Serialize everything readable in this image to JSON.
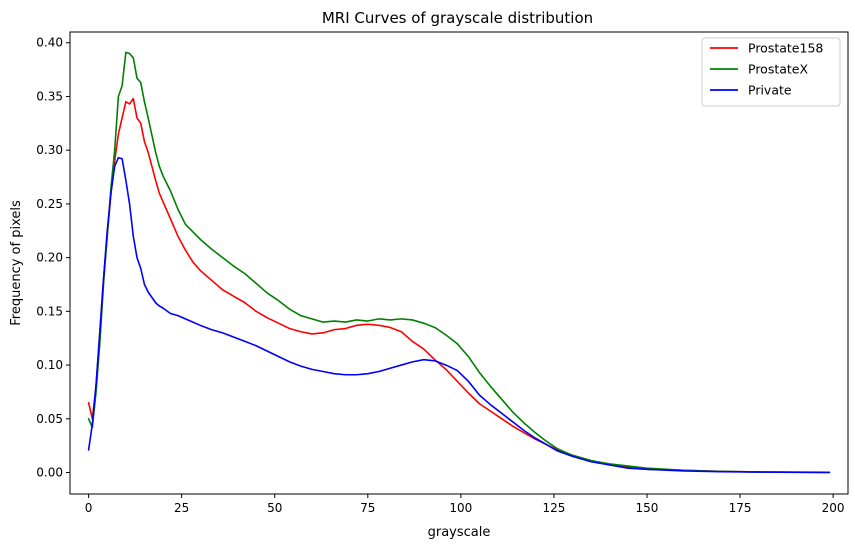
{
  "chart_data": {
    "type": "line",
    "title": "MRI Curves of grayscale distribution",
    "xlabel": "grayscale",
    "ylabel": "Frequency of pixels",
    "xlim": [
      -5,
      204
    ],
    "ylim": [
      -0.02,
      0.41
    ],
    "xticks": [
      0,
      25,
      50,
      75,
      100,
      125,
      150,
      175,
      200
    ],
    "xtick_labels": [
      "0",
      "25",
      "50",
      "75",
      "100",
      "125",
      "150",
      "175",
      "200"
    ],
    "yticks": [
      0.0,
      0.05,
      0.1,
      0.15,
      0.2,
      0.25,
      0.3,
      0.35,
      0.4
    ],
    "ytick_labels": [
      "0.00",
      "0.05",
      "0.10",
      "0.15",
      "0.20",
      "0.25",
      "0.30",
      "0.35",
      "0.40"
    ],
    "grid": false,
    "legend_position": "top-right",
    "series": [
      {
        "name": "Prostate158",
        "color": "#ff0000",
        "points": [
          [
            0,
            0.065
          ],
          [
            1,
            0.05
          ],
          [
            2,
            0.08
          ],
          [
            3,
            0.13
          ],
          [
            4,
            0.18
          ],
          [
            5,
            0.22
          ],
          [
            6,
            0.26
          ],
          [
            7,
            0.29
          ],
          [
            8,
            0.315
          ],
          [
            9,
            0.33
          ],
          [
            10,
            0.345
          ],
          [
            11,
            0.343
          ],
          [
            12,
            0.348
          ],
          [
            13,
            0.33
          ],
          [
            14,
            0.325
          ],
          [
            15,
            0.308
          ],
          [
            16,
            0.298
          ],
          [
            17,
            0.285
          ],
          [
            18,
            0.272
          ],
          [
            19,
            0.26
          ],
          [
            20,
            0.252
          ],
          [
            22,
            0.236
          ],
          [
            24,
            0.22
          ],
          [
            26,
            0.207
          ],
          [
            28,
            0.196
          ],
          [
            30,
            0.188
          ],
          [
            33,
            0.179
          ],
          [
            36,
            0.17
          ],
          [
            39,
            0.164
          ],
          [
            42,
            0.158
          ],
          [
            45,
            0.15
          ],
          [
            48,
            0.144
          ],
          [
            51,
            0.139
          ],
          [
            54,
            0.134
          ],
          [
            57,
            0.131
          ],
          [
            60,
            0.129
          ],
          [
            63,
            0.13
          ],
          [
            66,
            0.133
          ],
          [
            69,
            0.134
          ],
          [
            72,
            0.137
          ],
          [
            75,
            0.138
          ],
          [
            78,
            0.137
          ],
          [
            81,
            0.135
          ],
          [
            84,
            0.131
          ],
          [
            87,
            0.122
          ],
          [
            90,
            0.115
          ],
          [
            93,
            0.105
          ],
          [
            96,
            0.096
          ],
          [
            99,
            0.085
          ],
          [
            102,
            0.074
          ],
          [
            105,
            0.064
          ],
          [
            108,
            0.057
          ],
          [
            111,
            0.05
          ],
          [
            114,
            0.043
          ],
          [
            117,
            0.037
          ],
          [
            120,
            0.031
          ],
          [
            123,
            0.026
          ],
          [
            126,
            0.021
          ],
          [
            130,
            0.016
          ],
          [
            135,
            0.011
          ],
          [
            140,
            0.007
          ],
          [
            145,
            0.005
          ],
          [
            150,
            0.003
          ],
          [
            160,
            0.002
          ],
          [
            170,
            0.001
          ],
          [
            180,
            0.0005
          ],
          [
            190,
            0.0003
          ],
          [
            199,
            0.0002
          ]
        ]
      },
      {
        "name": "ProstateX",
        "color": "#008000",
        "points": [
          [
            0,
            0.05
          ],
          [
            1,
            0.042
          ],
          [
            2,
            0.075
          ],
          [
            3,
            0.12
          ],
          [
            4,
            0.175
          ],
          [
            5,
            0.22
          ],
          [
            6,
            0.265
          ],
          [
            7,
            0.3
          ],
          [
            8,
            0.35
          ],
          [
            9,
            0.36
          ],
          [
            10,
            0.391
          ],
          [
            11,
            0.39
          ],
          [
            12,
            0.386
          ],
          [
            13,
            0.367
          ],
          [
            14,
            0.363
          ],
          [
            15,
            0.345
          ],
          [
            16,
            0.33
          ],
          [
            17,
            0.314
          ],
          [
            18,
            0.298
          ],
          [
            19,
            0.285
          ],
          [
            20,
            0.276
          ],
          [
            22,
            0.262
          ],
          [
            24,
            0.245
          ],
          [
            26,
            0.231
          ],
          [
            28,
            0.224
          ],
          [
            30,
            0.217
          ],
          [
            33,
            0.208
          ],
          [
            36,
            0.2
          ],
          [
            39,
            0.192
          ],
          [
            42,
            0.185
          ],
          [
            45,
            0.176
          ],
          [
            48,
            0.167
          ],
          [
            51,
            0.16
          ],
          [
            54,
            0.152
          ],
          [
            57,
            0.146
          ],
          [
            60,
            0.143
          ],
          [
            63,
            0.14
          ],
          [
            66,
            0.141
          ],
          [
            69,
            0.14
          ],
          [
            72,
            0.142
          ],
          [
            75,
            0.141
          ],
          [
            78,
            0.143
          ],
          [
            81,
            0.142
          ],
          [
            84,
            0.143
          ],
          [
            87,
            0.142
          ],
          [
            90,
            0.139
          ],
          [
            93,
            0.135
          ],
          [
            96,
            0.128
          ],
          [
            99,
            0.12
          ],
          [
            102,
            0.108
          ],
          [
            105,
            0.093
          ],
          [
            108,
            0.08
          ],
          [
            111,
            0.068
          ],
          [
            114,
            0.056
          ],
          [
            117,
            0.046
          ],
          [
            120,
            0.037
          ],
          [
            123,
            0.029
          ],
          [
            126,
            0.022
          ],
          [
            130,
            0.016
          ],
          [
            135,
            0.011
          ],
          [
            140,
            0.008
          ],
          [
            145,
            0.006
          ],
          [
            150,
            0.004
          ],
          [
            160,
            0.002
          ],
          [
            170,
            0.001
          ],
          [
            180,
            0.0005
          ],
          [
            190,
            0.0003
          ],
          [
            199,
            0.0002
          ]
        ]
      },
      {
        "name": "Private",
        "color": "#0000ff",
        "points": [
          [
            0,
            0.021
          ],
          [
            1,
            0.045
          ],
          [
            2,
            0.082
          ],
          [
            3,
            0.13
          ],
          [
            4,
            0.18
          ],
          [
            5,
            0.225
          ],
          [
            6,
            0.26
          ],
          [
            7,
            0.285
          ],
          [
            8,
            0.293
          ],
          [
            9,
            0.292
          ],
          [
            10,
            0.272
          ],
          [
            11,
            0.25
          ],
          [
            12,
            0.22
          ],
          [
            13,
            0.2
          ],
          [
            14,
            0.19
          ],
          [
            15,
            0.175
          ],
          [
            16,
            0.168
          ],
          [
            17,
            0.163
          ],
          [
            18,
            0.158
          ],
          [
            19,
            0.155
          ],
          [
            20,
            0.153
          ],
          [
            22,
            0.148
          ],
          [
            24,
            0.146
          ],
          [
            26,
            0.143
          ],
          [
            28,
            0.14
          ],
          [
            30,
            0.137
          ],
          [
            33,
            0.133
          ],
          [
            36,
            0.13
          ],
          [
            39,
            0.126
          ],
          [
            42,
            0.122
          ],
          [
            45,
            0.118
          ],
          [
            48,
            0.113
          ],
          [
            51,
            0.108
          ],
          [
            54,
            0.103
          ],
          [
            57,
            0.099
          ],
          [
            60,
            0.096
          ],
          [
            63,
            0.094
          ],
          [
            66,
            0.092
          ],
          [
            69,
            0.091
          ],
          [
            72,
            0.091
          ],
          [
            75,
            0.092
          ],
          [
            78,
            0.094
          ],
          [
            81,
            0.097
          ],
          [
            84,
            0.1
          ],
          [
            87,
            0.103
          ],
          [
            90,
            0.105
          ],
          [
            93,
            0.104
          ],
          [
            96,
            0.1
          ],
          [
            99,
            0.095
          ],
          [
            102,
            0.085
          ],
          [
            105,
            0.072
          ],
          [
            108,
            0.063
          ],
          [
            111,
            0.055
          ],
          [
            114,
            0.047
          ],
          [
            117,
            0.039
          ],
          [
            120,
            0.032
          ],
          [
            123,
            0.026
          ],
          [
            126,
            0.02
          ],
          [
            130,
            0.015
          ],
          [
            135,
            0.01
          ],
          [
            140,
            0.007
          ],
          [
            145,
            0.004
          ],
          [
            150,
            0.003
          ],
          [
            160,
            0.0015
          ],
          [
            170,
            0.0008
          ],
          [
            180,
            0.0004
          ],
          [
            190,
            0.0002
          ],
          [
            199,
            0.0001
          ]
        ]
      }
    ]
  }
}
